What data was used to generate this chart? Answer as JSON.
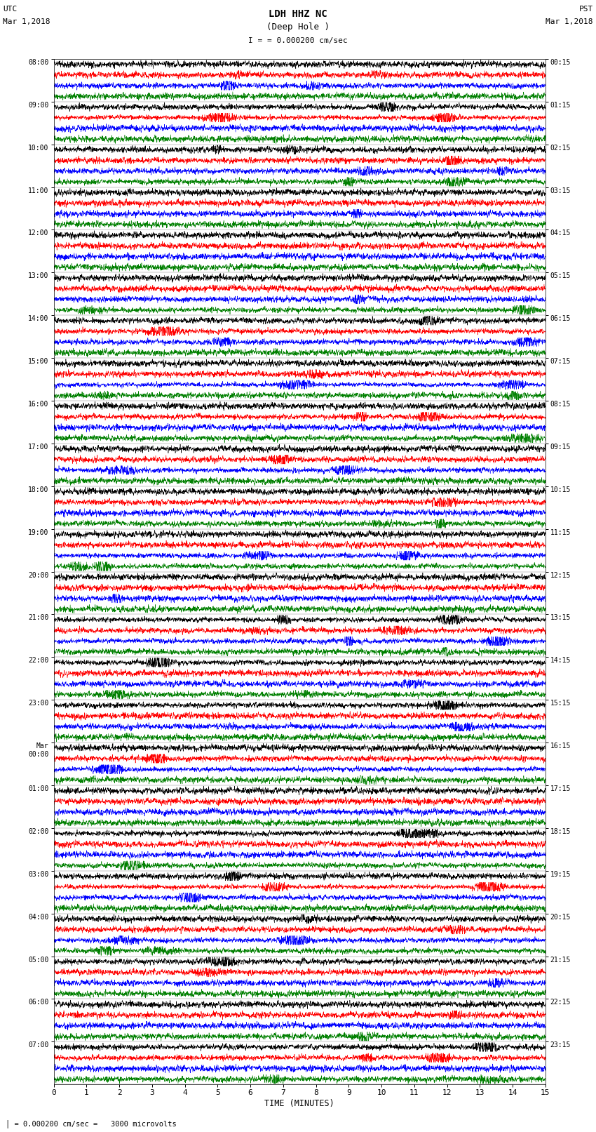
{
  "title_line1": "LDH HHZ NC",
  "title_line2": "(Deep Hole )",
  "scale_label": "= 0.000200 cm/sec",
  "bottom_label": "= 0.000200 cm/sec =   3000 microvolts",
  "xlabel": "TIME (MINUTES)",
  "left_times": [
    "08:00",
    "09:00",
    "10:00",
    "11:00",
    "12:00",
    "13:00",
    "14:00",
    "15:00",
    "16:00",
    "17:00",
    "18:00",
    "19:00",
    "20:00",
    "21:00",
    "22:00",
    "23:00",
    "Mar\n00:00",
    "01:00",
    "02:00",
    "03:00",
    "04:00",
    "05:00",
    "06:00",
    "07:00"
  ],
  "right_times": [
    "00:15",
    "01:15",
    "02:15",
    "03:15",
    "04:15",
    "05:15",
    "06:15",
    "07:15",
    "08:15",
    "09:15",
    "10:15",
    "11:15",
    "12:15",
    "13:15",
    "14:15",
    "15:15",
    "16:15",
    "17:15",
    "18:15",
    "19:15",
    "20:15",
    "21:15",
    "22:15",
    "23:15"
  ],
  "n_rows": 24,
  "traces_per_row": 4,
  "colors": [
    "black",
    "red",
    "blue",
    "green"
  ],
  "bg_color": "white",
  "figsize": [
    8.5,
    16.13
  ],
  "dpi": 100,
  "xmin": 0,
  "xmax": 15,
  "xticks": [
    0,
    1,
    2,
    3,
    4,
    5,
    6,
    7,
    8,
    9,
    10,
    11,
    12,
    13,
    14,
    15
  ]
}
